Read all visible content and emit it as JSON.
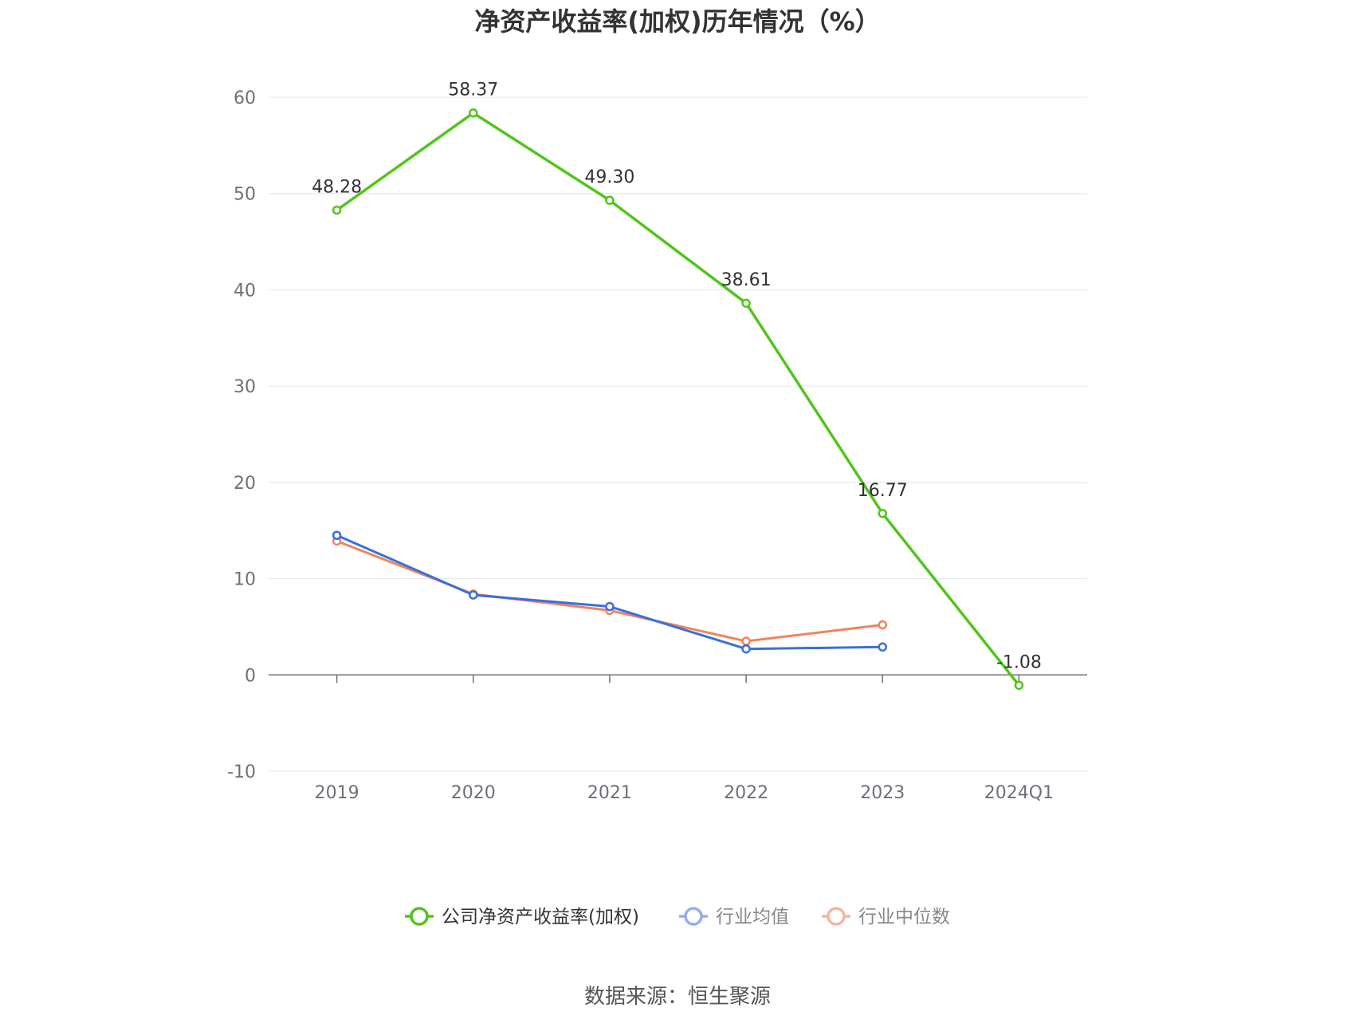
{
  "chart_data": {
    "type": "line",
    "title": "净资产收益率(加权)历年情况（%）",
    "categories": [
      "2019",
      "2020",
      "2021",
      "2022",
      "2023",
      "2024Q1"
    ],
    "ylim": [
      -10,
      60
    ],
    "yticks": [
      -10,
      0,
      10,
      20,
      30,
      40,
      50,
      60
    ],
    "grid": true,
    "legend_position": "bottom",
    "series": [
      {
        "name": "公司净资产收益率(加权)",
        "color": "#52c41a",
        "values": [
          48.28,
          58.37,
          49.3,
          38.61,
          16.77,
          -1.08
        ],
        "labels": [
          "48.28",
          "58.37",
          "49.30",
          "38.61",
          "16.77",
          "-1.08"
        ],
        "show_labels": true
      },
      {
        "name": "行业均值",
        "color": "#3a6fdb",
        "legend_color": "#8fb0ec",
        "values": [
          14.5,
          8.3,
          7.1,
          2.7,
          2.9,
          null
        ],
        "show_labels": false
      },
      {
        "name": "行业中位数",
        "color": "#f0845c",
        "legend_color": "#f5b59b",
        "values": [
          13.9,
          8.4,
          6.7,
          3.5,
          5.2,
          null
        ],
        "show_labels": false
      }
    ]
  },
  "source": "数据来源：恒生聚源"
}
